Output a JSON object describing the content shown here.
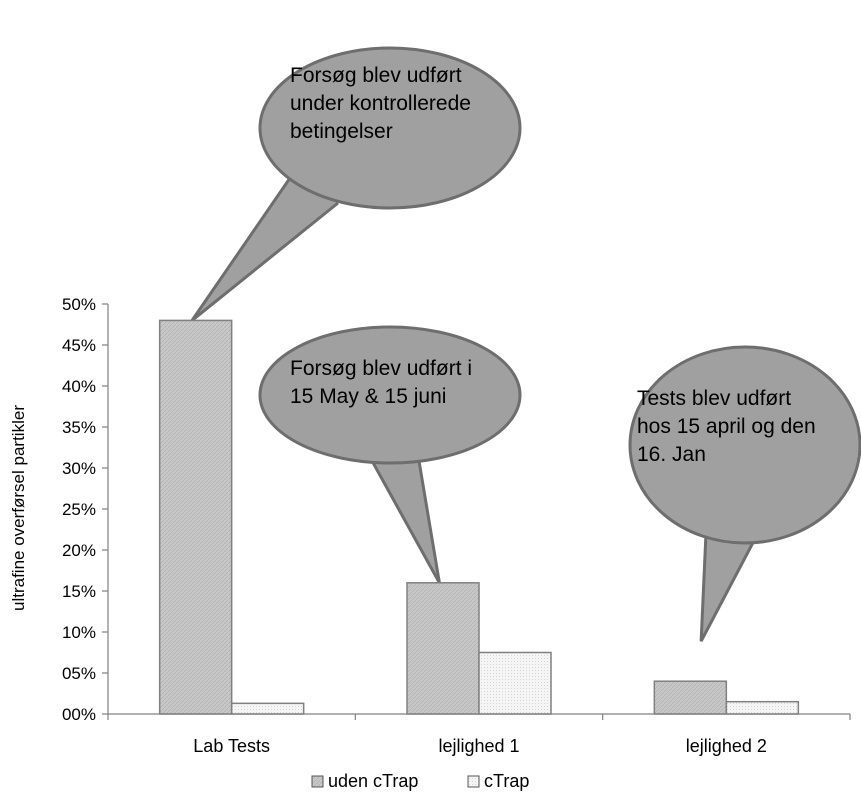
{
  "chart_data": {
    "type": "bar",
    "categories": [
      "Lab Tests",
      "lejlighed 1",
      "lejlighed 2"
    ],
    "series": [
      {
        "name": "uden cTrap",
        "values": [
          48,
          16,
          4
        ],
        "color": "#c8c8c8"
      },
      {
        "name": "cTrap",
        "values": [
          1.3,
          7.5,
          1.5
        ],
        "color": "#f2f2f2"
      }
    ],
    "title": "",
    "xlabel": "",
    "ylabel": "ultrafine overførsel partikler",
    "ylim": [
      0,
      50
    ],
    "yticks": [
      "00%",
      "05%",
      "10%",
      "15%",
      "20%",
      "25%",
      "30%",
      "35%",
      "40%",
      "45%",
      "50%"
    ],
    "legend_position": "bottom",
    "grid": false,
    "annotations": [
      {
        "category": "Lab Tests",
        "lines": [
          "Forsøg blev udført",
          "under kontrollerede",
          "betingelser"
        ]
      },
      {
        "category": "lejlighed 1",
        "lines": [
          "Forsøg blev udført i",
          "15 May & 15 juni"
        ]
      },
      {
        "category": "lejlighed 2",
        "lines": [
          "Tests blev udført",
          "hos 15 april og den",
          "16. Jan"
        ]
      }
    ]
  }
}
